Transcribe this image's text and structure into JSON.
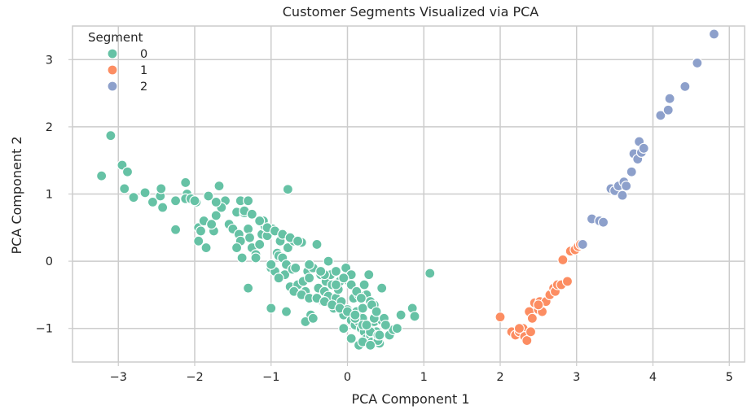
{
  "chart_data": {
    "type": "scatter",
    "title": "Customer Segments Visualized via PCA",
    "xlabel": "PCA Component 1",
    "ylabel": "PCA Component 2",
    "xlim": [
      -3.6,
      5.2
    ],
    "ylim": [
      -1.5,
      3.5
    ],
    "xticks": [
      -3,
      -2,
      -1,
      0,
      1,
      2,
      3,
      4,
      5
    ],
    "yticks": [
      -1,
      0,
      1,
      2,
      3
    ],
    "grid": true,
    "legend": {
      "title": "Segment",
      "placement": "top-left"
    },
    "colors": {
      "0": "#66c2a5",
      "1": "#fc8d62",
      "2": "#8da0cb",
      "grid": "#cccccc",
      "axes": "#cccccc"
    },
    "series": [
      {
        "name": "0",
        "x": [
          -3.1,
          -3.22,
          -2.95,
          -2.88,
          -2.92,
          -2.8,
          -2.65,
          -2.55,
          -2.45,
          -2.42,
          -2.44,
          -2.25,
          -2.12,
          -2.1,
          -2.12,
          -2.05,
          -1.98,
          -1.95,
          -1.92,
          -1.88,
          -1.82,
          -1.72,
          -1.75,
          -1.78,
          -1.85,
          -1.95,
          -2.0,
          -2.25,
          -1.68,
          -1.6,
          -1.55,
          -1.5,
          -1.45,
          -1.42,
          -1.4,
          -1.35,
          -1.3,
          -1.28,
          -1.25,
          -1.2,
          -1.15,
          -1.12,
          -1.08,
          -1.05,
          -1.0,
          -0.98,
          -0.95,
          -0.92,
          -0.9,
          -0.88,
          -0.85,
          -0.82,
          -0.8,
          -0.78,
          -0.75,
          -0.72,
          -0.7,
          -0.68,
          -0.65,
          -0.6,
          -0.58,
          -0.55,
          -0.52,
          -0.5,
          -0.48,
          -0.45,
          -0.42,
          -0.4,
          -0.38,
          -0.35,
          -0.32,
          -0.3,
          -0.28,
          -0.25,
          -0.22,
          -0.2,
          -0.18,
          -0.15,
          -0.12,
          -0.1,
          -0.08,
          -0.05,
          -0.02,
          0.0,
          0.02,
          0.05,
          0.08,
          0.1,
          0.12,
          0.15,
          0.18,
          0.2,
          0.22,
          0.25,
          0.28,
          0.3,
          0.32,
          0.35,
          0.38,
          0.4,
          0.42,
          0.45,
          0.5,
          0.55,
          0.6,
          0.65,
          0.7,
          0.85,
          0.88,
          1.08,
          -0.78,
          -1.65,
          -1.72,
          -1.3,
          -1.1,
          -1.35,
          -1.25,
          -1.15,
          -1.05,
          -0.95,
          -0.85,
          -0.75,
          -0.65,
          -1.4,
          -1.45,
          -1.38,
          -1.2,
          -1.0,
          -0.9,
          -0.7,
          -0.6,
          -0.5,
          -0.4,
          -0.3,
          -0.2,
          -0.1,
          0.0,
          0.1,
          0.2,
          0.3,
          0.4,
          -1.3,
          -1.0,
          -0.8,
          -0.55,
          -0.45,
          -0.3,
          -0.15,
          0.05,
          0.25,
          0.35,
          0.45,
          0.15,
          0.05,
          -0.05,
          0.25,
          0.35,
          0.1,
          0.2,
          0.3,
          0.15,
          0.22,
          0.28,
          0.4,
          -0.5,
          -0.35,
          -0.25,
          -0.15,
          -0.05,
          0.05,
          0.12,
          0.18,
          0.32,
          0.38,
          0.48,
          0.2,
          0.3,
          0.42,
          0.5
        ],
        "y": [
          1.87,
          1.27,
          1.43,
          1.33,
          1.08,
          0.95,
          1.02,
          0.88,
          0.97,
          0.8,
          1.08,
          0.47,
          1.17,
          1.0,
          0.93,
          0.93,
          0.88,
          0.5,
          0.45,
          0.6,
          0.97,
          0.68,
          0.45,
          0.55,
          0.2,
          0.3,
          0.9,
          0.9,
          1.12,
          0.9,
          0.55,
          0.48,
          0.73,
          0.4,
          0.9,
          0.72,
          0.48,
          0.35,
          0.2,
          0.1,
          0.25,
          0.4,
          0.52,
          0.38,
          -0.1,
          0.48,
          -0.15,
          0.12,
          0.08,
          0.3,
          0.05,
          -0.2,
          -0.05,
          0.2,
          -0.38,
          -0.12,
          0.3,
          -0.1,
          -0.35,
          0.28,
          -0.3,
          -0.45,
          -0.15,
          -0.25,
          -0.8,
          -0.1,
          -0.55,
          0.25,
          -0.4,
          -0.2,
          -0.6,
          -0.45,
          -0.3,
          -0.52,
          -0.2,
          -0.35,
          -0.7,
          -0.55,
          -0.42,
          -0.3,
          -0.6,
          -0.8,
          -0.1,
          -0.72,
          -0.3,
          -0.88,
          -0.55,
          -0.95,
          -0.75,
          -0.9,
          -1.0,
          -0.85,
          -1.05,
          -1.15,
          -0.98,
          -1.1,
          -1.2,
          -0.9,
          -1.05,
          -1.15,
          -1.22,
          -0.88,
          -0.95,
          -1.1,
          -1.02,
          -1.0,
          -0.8,
          -0.7,
          -0.82,
          -0.18,
          1.07,
          0.8,
          0.88,
          0.9,
          0.6,
          0.75,
          0.7,
          0.6,
          0.5,
          0.45,
          0.4,
          0.35,
          0.3,
          0.3,
          0.2,
          0.05,
          0.05,
          -0.05,
          -0.25,
          -0.45,
          -0.5,
          -0.55,
          -0.55,
          -0.6,
          -0.65,
          -0.7,
          -0.75,
          -0.85,
          -0.95,
          -1.05,
          -1.18,
          -0.4,
          -0.7,
          -0.75,
          -0.9,
          -0.85,
          -0.2,
          -0.35,
          -0.2,
          -0.5,
          -0.65,
          -0.4,
          -1.25,
          -1.15,
          -1.0,
          -0.95,
          -0.85,
          -0.8,
          -0.7,
          -0.6,
          -0.5,
          -0.35,
          -0.2,
          -1.1,
          -0.05,
          -0.15,
          0.0,
          -0.15,
          -0.25,
          -0.35,
          -0.45,
          -0.55,
          -0.65,
          -0.75,
          -0.85,
          -1.2,
          -1.25,
          -1.1,
          -0.95
        ],
        "color": "#66c2a5"
      },
      {
        "name": "1",
        "x": [
          2.0,
          2.15,
          2.2,
          2.25,
          2.3,
          2.32,
          2.35,
          2.38,
          2.4,
          2.42,
          2.45,
          2.5,
          2.52,
          2.55,
          2.6,
          2.65,
          2.7,
          2.72,
          2.75,
          2.8,
          2.82,
          2.88,
          2.92,
          2.98,
          3.02,
          3.05,
          2.5,
          2.25
        ],
        "y": [
          -0.83,
          -1.05,
          -1.1,
          -1.05,
          -1.0,
          -1.12,
          -1.18,
          -0.75,
          -1.05,
          -0.85,
          -0.62,
          -0.72,
          -0.6,
          -0.75,
          -0.6,
          -0.5,
          -0.4,
          -0.45,
          -0.35,
          -0.35,
          0.02,
          -0.3,
          0.15,
          0.17,
          0.22,
          0.25,
          -0.65,
          -1.0
        ],
        "color": "#fc8d62"
      },
      {
        "name": "2",
        "x": [
          3.08,
          3.2,
          3.3,
          3.35,
          3.45,
          3.5,
          3.55,
          3.6,
          3.62,
          3.65,
          3.72,
          3.75,
          3.8,
          3.82,
          3.85,
          3.88,
          4.1,
          4.2,
          4.22,
          4.42,
          4.58,
          4.8
        ],
        "y": [
          0.25,
          0.63,
          0.6,
          0.58,
          1.08,
          1.05,
          1.12,
          0.98,
          1.18,
          1.12,
          1.33,
          1.6,
          1.52,
          1.78,
          1.62,
          1.68,
          2.17,
          2.25,
          2.42,
          2.6,
          2.95,
          3.38
        ],
        "color": "#8da0cb"
      }
    ]
  }
}
